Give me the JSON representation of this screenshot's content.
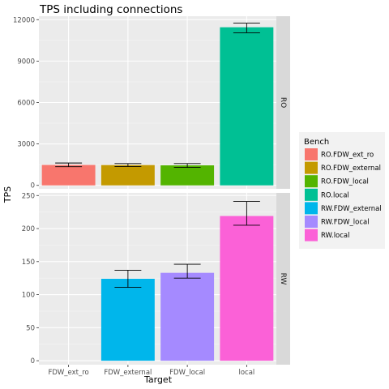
{
  "chart_data": {
    "type": "bar",
    "title": "TPS including connections",
    "xlabel": "Target",
    "ylabel": "TPS",
    "categories": [
      "FDW_ext_ro",
      "FDW_external",
      "FDW_local",
      "local"
    ],
    "legend": {
      "title": "Bench",
      "placement": "right",
      "entries": [
        {
          "name": "RO.FDW_ext_ro",
          "color": "#F8766D"
        },
        {
          "name": "RO.FDW_external",
          "color": "#C49A00"
        },
        {
          "name": "RO.FDW_local",
          "color": "#53B400"
        },
        {
          "name": "RO.local",
          "color": "#00C094"
        },
        {
          "name": "RW.FDW_external",
          "color": "#00B6EB"
        },
        {
          "name": "RW.FDW_local",
          "color": "#A58AFF"
        },
        {
          "name": "RW.local",
          "color": "#FB61D7"
        }
      ]
    },
    "panels": [
      {
        "strip": "RO",
        "ylim": [
          -250,
          12250
        ],
        "yticks": [
          0,
          3000,
          6000,
          9000,
          12000
        ],
        "ytick_labels": [
          "0",
          "3000",
          "6000",
          "9000",
          "12000"
        ],
        "bars": [
          {
            "category": "FDW_ext_ro",
            "series": "RO.FDW_ext_ro",
            "value": 1480,
            "err_low": 1350,
            "err_high": 1620
          },
          {
            "category": "FDW_external",
            "series": "RO.FDW_external",
            "value": 1470,
            "err_low": 1370,
            "err_high": 1580
          },
          {
            "category": "FDW_local",
            "series": "RO.FDW_local",
            "value": 1450,
            "err_low": 1300,
            "err_high": 1580
          },
          {
            "category": "local",
            "series": "RO.local",
            "value": 11450,
            "err_low": 11050,
            "err_high": 11750
          }
        ]
      },
      {
        "strip": "RW",
        "ylim": [
          -6,
          254
        ],
        "yticks": [
          0,
          50,
          100,
          150,
          200,
          250
        ],
        "ytick_labels": [
          "0",
          "50",
          "100",
          "150",
          "200",
          "250"
        ],
        "bars": [
          {
            "category": "FDW_external",
            "series": "RW.FDW_external",
            "value": 124,
            "err_low": 111,
            "err_high": 137
          },
          {
            "category": "FDW_local",
            "series": "RW.FDW_local",
            "value": 133,
            "err_low": 125,
            "err_high": 146
          },
          {
            "category": "local",
            "series": "RW.local",
            "value": 219,
            "err_low": 205,
            "err_high": 241
          }
        ]
      }
    ],
    "grid": true
  }
}
